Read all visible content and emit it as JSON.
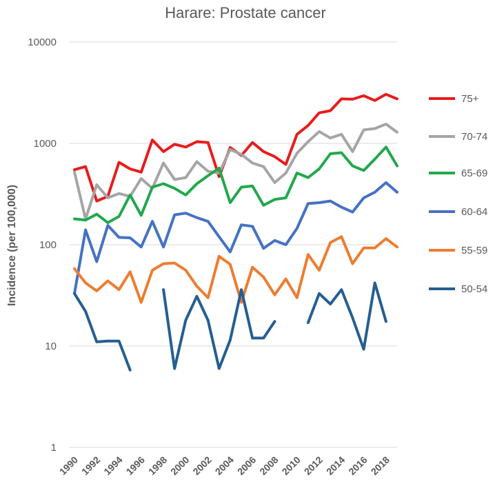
{
  "chart_data": {
    "type": "line",
    "title": "Harare: Prostate cancer",
    "ylabel": "Incidence (per 100,000)",
    "xlabel": "",
    "y_scale": "log",
    "ylim": [
      1,
      10000
    ],
    "y_ticks": [
      "1",
      "10",
      "100",
      "1000",
      "10000"
    ],
    "y_tick_values": [
      1,
      10,
      100,
      1000,
      10000
    ],
    "x_tick_labels": [
      "1990",
      "1992",
      "1994",
      "1996",
      "1998",
      "2000",
      "2002",
      "2004",
      "2006",
      "2008",
      "2010",
      "2012",
      "2014",
      "2016",
      "2018"
    ],
    "x": [
      1990,
      1991,
      1992,
      1993,
      1994,
      1995,
      1996,
      1997,
      1998,
      1999,
      2000,
      2001,
      2002,
      2003,
      2004,
      2005,
      2006,
      2007,
      2008,
      2009,
      2010,
      2011,
      2012,
      2013,
      2014,
      2015,
      2016,
      2017,
      2018,
      2019
    ],
    "grid": "horizontal",
    "legend_position": "right",
    "series": [
      {
        "name": "75+",
        "color": "#e81c1c",
        "values": [
          550,
          590,
          270,
          300,
          650,
          560,
          520,
          1080,
          830,
          980,
          920,
          1040,
          1020,
          470,
          910,
          760,
          1020,
          830,
          740,
          620,
          1230,
          1500,
          2000,
          2100,
          2750,
          2730,
          2950,
          2650,
          3050,
          2750
        ]
      },
      {
        "name": "70-74",
        "color": "#a5a5a5",
        "values": [
          520,
          180,
          390,
          290,
          320,
          300,
          450,
          360,
          640,
          440,
          460,
          660,
          530,
          510,
          870,
          780,
          640,
          590,
          410,
          510,
          800,
          1040,
          1310,
          1130,
          1230,
          830,
          1360,
          1400,
          1550,
          1290
        ]
      },
      {
        "name": "65-69",
        "color": "#21a84c",
        "values": [
          180,
          175,
          200,
          165,
          190,
          310,
          195,
          370,
          400,
          360,
          310,
          400,
          480,
          570,
          260,
          370,
          380,
          245,
          280,
          290,
          510,
          460,
          560,
          790,
          810,
          600,
          540,
          700,
          920,
          600
        ]
      },
      {
        "name": "60-64",
        "color": "#4472c4",
        "values": [
          33,
          140,
          68,
          155,
          118,
          117,
          95,
          170,
          95,
          197,
          205,
          185,
          170,
          120,
          85,
          157,
          152,
          92,
          110,
          100,
          145,
          255,
          260,
          270,
          235,
          210,
          290,
          330,
          410,
          330
        ]
      },
      {
        "name": "55-59",
        "color": "#ed7d31",
        "values": [
          58,
          42,
          35,
          44,
          36,
          54,
          27,
          56,
          65,
          66,
          56,
          39,
          30,
          77,
          64,
          27,
          60,
          48,
          32,
          46,
          30,
          80,
          56,
          105,
          120,
          65,
          93,
          93,
          115,
          95
        ]
      },
      {
        "name": "50-54",
        "color": "#255e91",
        "values": [
          33,
          22,
          11,
          11.2,
          11.2,
          5.8,
          null,
          null,
          36,
          6,
          18,
          31,
          18,
          6,
          11.5,
          36,
          12,
          12,
          17.5,
          null,
          null,
          17,
          33,
          26,
          36,
          19,
          9.3,
          42,
          17.5,
          null
        ]
      }
    ]
  }
}
